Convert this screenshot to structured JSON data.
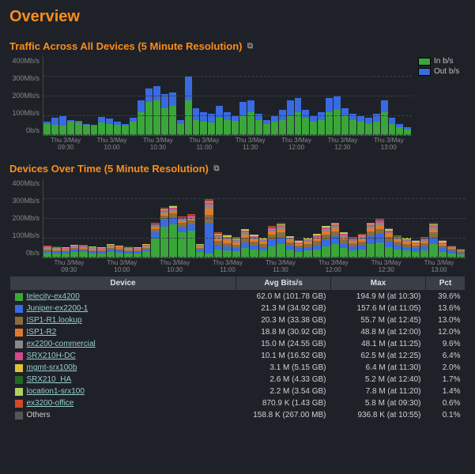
{
  "page_title": "Overview",
  "chart1": {
    "title": "Traffic Across All Devices (5 Minute Resolution)",
    "ylabel_max": 400,
    "yticks": [
      "400Mb/s",
      "300Mb/s",
      "200Mb/s",
      "100Mb/s",
      "0b/s"
    ],
    "xticks": [
      "Thu 3/May\n09:30",
      "Thu 3/May\n10:00",
      "Thu 3/May\n10:30",
      "Thu 3/May\n11:00",
      "Thu 3/May\n11:30",
      "Thu 3/May\n12:00",
      "Thu 3/May\n12:30",
      "Thu 3/May\n13:00"
    ],
    "in_color": "#3aa63a",
    "out_color": "#3a6ae0",
    "bg_color": "#1e2228",
    "grid_color": "#3a3f47",
    "legend": [
      {
        "label": "In b/s",
        "color": "#3aa63a"
      },
      {
        "label": "Out b/s",
        "color": "#3a6ae0"
      }
    ],
    "data": [
      {
        "in": 60,
        "out": 70
      },
      {
        "in": 55,
        "out": 90
      },
      {
        "in": 50,
        "out": 100
      },
      {
        "in": 70,
        "out": 80
      },
      {
        "in": 65,
        "out": 75
      },
      {
        "in": 55,
        "out": 60
      },
      {
        "in": 50,
        "out": 55
      },
      {
        "in": 65,
        "out": 95
      },
      {
        "in": 60,
        "out": 85
      },
      {
        "in": 55,
        "out": 70
      },
      {
        "in": 50,
        "out": 60
      },
      {
        "in": 70,
        "out": 90
      },
      {
        "in": 120,
        "out": 180
      },
      {
        "in": 170,
        "out": 240
      },
      {
        "in": 180,
        "out": 250
      },
      {
        "in": 140,
        "out": 210
      },
      {
        "in": 150,
        "out": 220
      },
      {
        "in": 60,
        "out": 80
      },
      {
        "in": 180,
        "out": 300
      },
      {
        "in": 80,
        "out": 140
      },
      {
        "in": 70,
        "out": 120
      },
      {
        "in": 65,
        "out": 110
      },
      {
        "in": 90,
        "out": 150
      },
      {
        "in": 80,
        "out": 120
      },
      {
        "in": 75,
        "out": 100
      },
      {
        "in": 100,
        "out": 170
      },
      {
        "in": 120,
        "out": 180
      },
      {
        "in": 80,
        "out": 110
      },
      {
        "in": 60,
        "out": 80
      },
      {
        "in": 70,
        "out": 100
      },
      {
        "in": 80,
        "out": 130
      },
      {
        "in": 100,
        "out": 180
      },
      {
        "in": 120,
        "out": 190
      },
      {
        "in": 90,
        "out": 130
      },
      {
        "in": 70,
        "out": 100
      },
      {
        "in": 80,
        "out": 120
      },
      {
        "in": 120,
        "out": 190
      },
      {
        "in": 130,
        "out": 200
      },
      {
        "in": 100,
        "out": 140
      },
      {
        "in": 80,
        "out": 110
      },
      {
        "in": 70,
        "out": 100
      },
      {
        "in": 60,
        "out": 90
      },
      {
        "in": 70,
        "out": 110
      },
      {
        "in": 120,
        "out": 180
      },
      {
        "in": 60,
        "out": 90
      },
      {
        "in": 40,
        "out": 60
      },
      {
        "in": 30,
        "out": 40
      }
    ]
  },
  "chart2": {
    "title": "Devices Over Time (5 Minute Resolution)",
    "ylabel_max": 400,
    "yticks": [
      "400Mb/s",
      "300Mb/s",
      "200Mb/s",
      "100Mb/s",
      "0b/s"
    ],
    "xticks": [
      "Thu 3/May\n09:30",
      "Thu 3/May\n10:00",
      "Thu 3/May\n10:30",
      "Thu 3/May\n11:00",
      "Thu 3/May\n11:30",
      "Thu 3/May\n12:00",
      "Thu 3/May\n12:30",
      "Thu 3/May\n13:00"
    ],
    "series_colors": [
      "#3aa63a",
      "#3a6ae0",
      "#8a6d3b",
      "#e07a2a",
      "#888888",
      "#d14a8a",
      "#e0c23a",
      "#1e6b1e",
      "#b0d060",
      "#d14a2a",
      "#555555"
    ],
    "data": [
      [
        25,
        8,
        8,
        7,
        5,
        4,
        1,
        1,
        1,
        1,
        0
      ],
      [
        22,
        9,
        8,
        7,
        5,
        4,
        1,
        1,
        1,
        1,
        0
      ],
      [
        20,
        8,
        8,
        7,
        5,
        4,
        1,
        1,
        1,
        1,
        0
      ],
      [
        30,
        10,
        8,
        7,
        5,
        4,
        1,
        1,
        1,
        1,
        0
      ],
      [
        28,
        9,
        8,
        7,
        5,
        4,
        1,
        1,
        1,
        1,
        0
      ],
      [
        22,
        8,
        8,
        7,
        5,
        4,
        1,
        1,
        1,
        1,
        0
      ],
      [
        20,
        8,
        8,
        7,
        5,
        4,
        1,
        1,
        1,
        1,
        0
      ],
      [
        30,
        12,
        8,
        7,
        5,
        4,
        1,
        1,
        1,
        1,
        0
      ],
      [
        26,
        10,
        8,
        7,
        5,
        4,
        1,
        1,
        1,
        1,
        0
      ],
      [
        22,
        9,
        8,
        7,
        5,
        4,
        1,
        1,
        1,
        1,
        0
      ],
      [
        20,
        8,
        8,
        7,
        5,
        4,
        1,
        1,
        1,
        1,
        0
      ],
      [
        32,
        12,
        8,
        7,
        5,
        4,
        1,
        1,
        1,
        1,
        0
      ],
      [
        100,
        30,
        15,
        10,
        8,
        6,
        3,
        2,
        2,
        2,
        1
      ],
      [
        160,
        35,
        20,
        12,
        10,
        8,
        3,
        2,
        2,
        2,
        1
      ],
      [
        170,
        36,
        20,
        12,
        10,
        8,
        3,
        2,
        2,
        2,
        1
      ],
      [
        130,
        30,
        18,
        10,
        8,
        6,
        3,
        2,
        2,
        2,
        1
      ],
      [
        140,
        32,
        18,
        10,
        8,
        6,
        3,
        2,
        2,
        2,
        1
      ],
      [
        30,
        12,
        8,
        7,
        5,
        4,
        1,
        1,
        1,
        1,
        0
      ],
      [
        20,
        160,
        40,
        30,
        20,
        12,
        5,
        3,
        3,
        3,
        2
      ],
      [
        40,
        25,
        20,
        15,
        12,
        8,
        3,
        2,
        2,
        2,
        1
      ],
      [
        36,
        22,
        18,
        14,
        10,
        7,
        3,
        2,
        2,
        2,
        1
      ],
      [
        32,
        20,
        16,
        12,
        10,
        6,
        3,
        2,
        2,
        2,
        1
      ],
      [
        50,
        30,
        22,
        16,
        12,
        8,
        3,
        2,
        2,
        2,
        1
      ],
      [
        40,
        24,
        18,
        12,
        10,
        6,
        3,
        2,
        2,
        2,
        1
      ],
      [
        36,
        20,
        16,
        10,
        8,
        5,
        2,
        2,
        2,
        2,
        1
      ],
      [
        60,
        35,
        22,
        16,
        12,
        8,
        3,
        2,
        2,
        2,
        1
      ],
      [
        70,
        38,
        24,
        16,
        12,
        8,
        3,
        2,
        2,
        2,
        1
      ],
      [
        40,
        24,
        16,
        10,
        8,
        5,
        2,
        2,
        2,
        2,
        1
      ],
      [
        30,
        18,
        14,
        8,
        6,
        4,
        2,
        2,
        2,
        2,
        1
      ],
      [
        36,
        20,
        16,
        10,
        8,
        5,
        2,
        2,
        2,
        2,
        1
      ],
      [
        42,
        26,
        18,
        12,
        10,
        6,
        3,
        2,
        2,
        2,
        1
      ],
      [
        60,
        36,
        22,
        16,
        12,
        8,
        3,
        2,
        2,
        2,
        1
      ],
      [
        70,
        40,
        24,
        16,
        12,
        8,
        3,
        2,
        2,
        2,
        1
      ],
      [
        48,
        28,
        18,
        12,
        10,
        6,
        3,
        2,
        2,
        2,
        1
      ],
      [
        36,
        22,
        16,
        10,
        8,
        5,
        2,
        2,
        2,
        2,
        1
      ],
      [
        42,
        24,
        18,
        12,
        10,
        6,
        3,
        2,
        2,
        2,
        1
      ],
      [
        70,
        40,
        24,
        16,
        12,
        8,
        3,
        2,
        2,
        2,
        1
      ],
      [
        78,
        44,
        26,
        18,
        14,
        10,
        3,
        2,
        2,
        2,
        1
      ],
      [
        56,
        32,
        20,
        14,
        10,
        7,
        3,
        2,
        2,
        2,
        1
      ],
      [
        42,
        24,
        16,
        10,
        8,
        5,
        2,
        2,
        2,
        2,
        1
      ],
      [
        36,
        20,
        16,
        10,
        8,
        5,
        2,
        2,
        2,
        2,
        1
      ],
      [
        30,
        18,
        14,
        8,
        6,
        4,
        2,
        2,
        2,
        2,
        1
      ],
      [
        36,
        22,
        16,
        10,
        8,
        5,
        2,
        2,
        2,
        2,
        1
      ],
      [
        70,
        38,
        24,
        16,
        12,
        8,
        3,
        2,
        2,
        2,
        1
      ],
      [
        30,
        18,
        14,
        8,
        6,
        4,
        2,
        2,
        2,
        2,
        1
      ],
      [
        22,
        14,
        10,
        6,
        4,
        3,
        1,
        1,
        1,
        1,
        0
      ],
      [
        16,
        10,
        8,
        4,
        3,
        2,
        1,
        1,
        1,
        1,
        0
      ]
    ]
  },
  "table": {
    "headers": [
      "Device",
      "Avg Bits/s",
      "Max",
      "Pct"
    ],
    "rows": [
      {
        "color": "#3aa63a",
        "name": "telecity-ex4200",
        "avg": "62.0 M (101.78 GB)",
        "max": "194.9 M (at 10:30)",
        "pct": "39.6%"
      },
      {
        "color": "#3a6ae0",
        "name": "Juniper-ex2200-1",
        "avg": "21.3 M (34.92 GB)",
        "max": "157.6 M (at 11:05)",
        "pct": "13.6%"
      },
      {
        "color": "#8a6d3b",
        "name": "ISP1-R1.lookup",
        "avg": "20.3 M (33.38 GB)",
        "max": "55.7 M (at 12:45)",
        "pct": "13.0%"
      },
      {
        "color": "#e07a2a",
        "name": "ISP1-R2",
        "avg": "18.8 M (30.92 GB)",
        "max": "48.8 M (at 12:00)",
        "pct": "12.0%"
      },
      {
        "color": "#888888",
        "name": "ex2200-commercial",
        "avg": "15.0 M (24.55 GB)",
        "max": "48.1 M (at 11:25)",
        "pct": "9.6%"
      },
      {
        "color": "#d14a8a",
        "name": "SRX210H-DC",
        "avg": "10.1 M (16.52 GB)",
        "max": "62.5 M (at 12:25)",
        "pct": "6.4%"
      },
      {
        "color": "#e0c23a",
        "name": "mgmt-srx100b",
        "avg": "3.1 M (5.15 GB)",
        "max": "6.4 M (at 11:30)",
        "pct": "2.0%"
      },
      {
        "color": "#1e6b1e",
        "name": "SRX210_HA",
        "avg": "2.6 M (4.33 GB)",
        "max": "5.2 M (at 12:40)",
        "pct": "1.7%"
      },
      {
        "color": "#b0d060",
        "name": "location1-srx100",
        "avg": "2.2 M (3.54 GB)",
        "max": "7.8 M (at 11:20)",
        "pct": "1.4%"
      },
      {
        "color": "#d14a2a",
        "name": "ex3200-office",
        "avg": "870.9 K (1.43 GB)",
        "max": "5.8 M (at 09:30)",
        "pct": "0.6%"
      },
      {
        "color": "#555555",
        "name": "Others",
        "avg": "158.8 K (267.00 MB)",
        "max": "936.8 K (at 10:55)",
        "pct": "0.1%",
        "plain": true
      }
    ]
  }
}
